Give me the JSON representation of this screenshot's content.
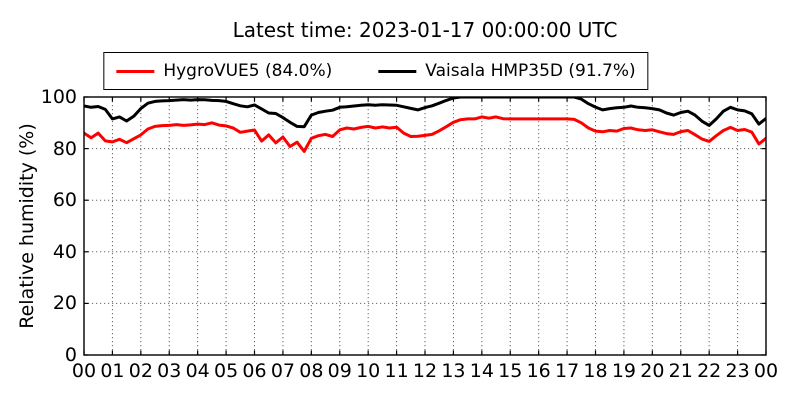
{
  "title": "Latest time: 2023-01-17 00:00:00 UTC",
  "y_axis_label": "Relative humidity (%)",
  "legend": {
    "items": [
      {
        "label": "HygroVUE5 (84.0%)",
        "color": "#ff0000"
      },
      {
        "label": "Vaisala HMP35D (91.7%)",
        "color": "#000000"
      }
    ]
  },
  "chart_data": {
    "type": "line",
    "title": "Latest time: 2023-01-17 00:00:00 UTC",
    "xlabel": "",
    "ylabel": "Relative humidity (%)",
    "xlim_hours": [
      0,
      24
    ],
    "ylim": [
      0,
      100
    ],
    "yticks": [
      0,
      20,
      40,
      60,
      80,
      100
    ],
    "xtick_labels": [
      "00",
      "01",
      "02",
      "03",
      "04",
      "05",
      "06",
      "07",
      "08",
      "09",
      "10",
      "11",
      "12",
      "13",
      "14",
      "15",
      "16",
      "17",
      "18",
      "19",
      "20",
      "21",
      "22",
      "23",
      "00"
    ],
    "grid": "dotted, vertical every hour, horizontal every 20%",
    "legend_position": "upper center above axes",
    "x_start_hour": 0,
    "x_step_hours": 0.25,
    "series": [
      {
        "name": "HygroVUE5 (84.0%)",
        "color": "#ff0000",
        "latest_value_pct": 84.0,
        "values": [
          86.0,
          84.2,
          86.0,
          83.0,
          82.6,
          83.6,
          82.3,
          83.8,
          85.3,
          87.6,
          88.6,
          88.9,
          89.0,
          89.3,
          89.0,
          89.2,
          89.5,
          89.3,
          90.0,
          89.1,
          88.8,
          88.0,
          86.3,
          86.8,
          87.2,
          82.9,
          85.3,
          82.2,
          84.5,
          80.8,
          82.5,
          78.9,
          84.0,
          85.0,
          85.5,
          84.7,
          87.3,
          88.0,
          87.6,
          88.2,
          88.6,
          88.0,
          88.4,
          88.0,
          88.3,
          86.0,
          84.7,
          84.8,
          85.1,
          85.5,
          86.9,
          88.5,
          90.2,
          91.2,
          91.5,
          91.5,
          92.3,
          91.8,
          92.3,
          91.6,
          91.5,
          91.5,
          91.5,
          91.5,
          91.5,
          91.5,
          91.5,
          91.5,
          91.5,
          91.3,
          90.0,
          88.0,
          86.8,
          86.5,
          87.0,
          86.8,
          87.8,
          88.0,
          87.3,
          87.0,
          87.3,
          86.5,
          85.8,
          85.5,
          86.6,
          87.0,
          85.4,
          83.7,
          82.8,
          85.0,
          87.0,
          88.2,
          87.0,
          87.4,
          86.4,
          81.8,
          84.0
        ]
      },
      {
        "name": "Vaisala HMP35D (91.7%)",
        "color": "#000000",
        "latest_value_pct": 91.7,
        "values": [
          96.5,
          96.0,
          96.3,
          95.2,
          91.5,
          92.3,
          90.7,
          92.5,
          95.5,
          97.6,
          98.3,
          98.5,
          98.6,
          98.8,
          99.0,
          98.8,
          99.0,
          98.9,
          98.7,
          98.6,
          98.3,
          97.4,
          96.6,
          96.2,
          96.9,
          95.4,
          93.8,
          93.6,
          92.0,
          90.2,
          88.6,
          88.5,
          93.0,
          94.0,
          94.5,
          94.9,
          96.0,
          96.2,
          96.5,
          96.8,
          97.0,
          96.8,
          97.0,
          96.9,
          96.8,
          96.2,
          95.6,
          95.0,
          95.9,
          96.6,
          97.6,
          98.7,
          99.6,
          100.0,
          100.0,
          100.0,
          100.0,
          100.0,
          100.0,
          100.0,
          100.0,
          100.0,
          100.0,
          100.0,
          100.0,
          100.0,
          100.0,
          100.0,
          100.0,
          100.0,
          99.2,
          97.4,
          96.1,
          95.0,
          95.5,
          95.8,
          96.0,
          96.5,
          96.0,
          95.8,
          95.5,
          95.0,
          93.8,
          93.0,
          94.0,
          94.5,
          93.0,
          90.6,
          89.0,
          91.5,
          94.5,
          96.0,
          95.0,
          94.6,
          93.5,
          89.5,
          91.7
        ]
      }
    ]
  }
}
